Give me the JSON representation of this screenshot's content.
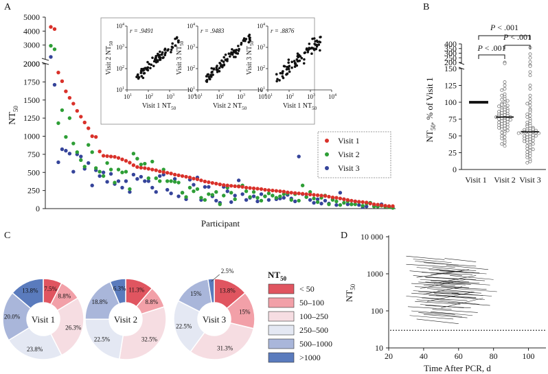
{
  "colors": {
    "visit1": "#d9312a",
    "visit2": "#2e9e36",
    "visit3": "#35449a",
    "pie": [
      "#e05560",
      "#f2a0a8",
      "#f6dde2",
      "#e4e8f3",
      "#a9b6da",
      "#5a7bbd"
    ]
  },
  "chart_data": [
    {
      "id": "A",
      "type": "scatter",
      "panel_label": "A",
      "xlabel": "Participant",
      "ylabel_main": "NT",
      "ylabel_sub": "50",
      "y_ticks_upper": [
        "5000",
        "4000",
        "3000",
        "2000"
      ],
      "y_ticks_lower": [
        "2000",
        "1750",
        "1500",
        "1250",
        "1000",
        "750",
        "500",
        "250",
        "0"
      ],
      "ylim": [
        0,
        5000
      ],
      "axis_break_at": 2000,
      "legend": [
        "Visit 1",
        "Visit 2",
        "Visit 3"
      ],
      "legend_position": "right",
      "series": [
        {
          "name": "Visit 1",
          "values": [
            4300,
            4150,
            1880,
            1760,
            1620,
            1530,
            1450,
            1350,
            1270,
            1190,
            1110,
            1000,
            990,
            790,
            730,
            725,
            720,
            715,
            700,
            680,
            660,
            635,
            600,
            575,
            565,
            560,
            550,
            540,
            530,
            515,
            505,
            495,
            485,
            470,
            460,
            450,
            440,
            430,
            415,
            405,
            390,
            375,
            365,
            355,
            345,
            335,
            325,
            320,
            315,
            310,
            305,
            300,
            290,
            285,
            280,
            275,
            270,
            260,
            255,
            250,
            245,
            240,
            235,
            225,
            220,
            215,
            210,
            205,
            200,
            195,
            190,
            185,
            180,
            175,
            165,
            155,
            150,
            140,
            130,
            120,
            110,
            100,
            95,
            90,
            85,
            70,
            60,
            55,
            45,
            40,
            35,
            35
          ]
        },
        {
          "name": "Visit 2",
          "values": [
            2950,
            2700,
            1180,
            1360,
            990,
            1250,
            900,
            780,
            670,
            580,
            880,
            780,
            560,
            510,
            450,
            630,
            540,
            360,
            540,
            500,
            510,
            270,
            760,
            690,
            610,
            620,
            420,
            650,
            420,
            380,
            540,
            380,
            380,
            370,
            360,
            220,
            160,
            290,
            240,
            270,
            150,
            120,
            200,
            190,
            230,
            60,
            180,
            290,
            220,
            130,
            310,
            320,
            240,
            160,
            230,
            150,
            110,
            170,
            210,
            180,
            150,
            170,
            200,
            210,
            120,
            200,
            110,
            320,
            160,
            230,
            140,
            90,
            150,
            180,
            60,
            120,
            100,
            50,
            80,
            100,
            60,
            60,
            90,
            40,
            70,
            80,
            30,
            30,
            40,
            25,
            20,
            10
          ]
        },
        {
          "name": "Visit 3",
          "values": [
            2150,
            1710,
            640,
            820,
            800,
            760,
            510,
            750,
            720,
            550,
            630,
            320,
            530,
            450,
            500,
            370,
            480,
            340,
            380,
            290,
            380,
            230,
            470,
            410,
            440,
            380,
            380,
            290,
            230,
            450,
            470,
            260,
            210,
            410,
            170,
            220,
            130,
            400,
            330,
            430,
            120,
            300,
            300,
            170,
            110,
            80,
            300,
            240,
            90,
            180,
            390,
            200,
            120,
            150,
            170,
            100,
            200,
            170,
            120,
            180,
            130,
            140,
            150,
            190,
            140,
            100,
            720,
            200,
            160,
            120,
            80,
            130,
            70,
            110,
            70,
            130,
            50,
            220,
            130,
            60,
            60,
            100,
            50,
            20,
            30,
            80,
            40,
            30,
            60,
            30,
            30,
            20
          ]
        }
      ]
    },
    {
      "id": "A-inset",
      "type": "scatter",
      "plots": [
        {
          "xlabel_main": "Visit 1 NT",
          "xlabel_sub": "50",
          "ylabel_main": "Visit 2 NT",
          "ylabel_sub": "50",
          "r_label": "r = .9491",
          "slope": 0.9,
          "spread": 0.16
        },
        {
          "xlabel_main": "Visit 2 NT",
          "xlabel_sub": "50",
          "ylabel_main": "Visit 3 NT",
          "ylabel_sub": "50",
          "r_label": "r = .9483",
          "slope": 0.95,
          "spread": 0.17
        },
        {
          "xlabel_main": "Visit 1 NT",
          "xlabel_sub": "50",
          "ylabel_main": "Visit 3 NT",
          "ylabel_sub": "50",
          "r_label": "r = .8876",
          "slope": 0.85,
          "spread": 0.26
        }
      ],
      "scale": "log10",
      "lim": [
        10,
        10000
      ],
      "tick_base": "10",
      "tick_exponents": [
        "1",
        "2",
        "3",
        "4"
      ]
    },
    {
      "id": "B",
      "type": "scatter",
      "panel_label": "B",
      "categories": [
        "Visit 1",
        "Visit 2",
        "Visit 3"
      ],
      "ylabel_main": "NT",
      "ylabel_sub": "50",
      "ylabel_rest": ", % of Visit 1",
      "y_ticks_upper": [
        "400",
        "350",
        "300",
        "250",
        "200"
      ],
      "y_ticks_lower": [
        "150",
        "125",
        "100",
        "75",
        "50",
        "25",
        "0"
      ],
      "axis_break_at": 150,
      "medians": [
        100,
        78,
        56
      ],
      "significance": [
        "P < .001",
        "P < .001",
        "P < .001"
      ],
      "series": [
        {
          "name": "Visit 1",
          "values": [
            100
          ]
        },
        {
          "name": "Visit 2",
          "values": [
            200,
            190,
            130,
            125,
            120,
            118,
            112,
            110,
            108,
            105,
            104,
            102,
            100,
            98,
            97,
            96,
            95,
            94,
            92,
            91,
            90,
            89,
            88,
            87,
            86,
            85,
            84,
            83,
            82,
            81,
            80,
            80,
            79,
            78,
            78,
            77,
            76,
            75,
            75,
            74,
            73,
            72,
            71,
            70,
            69,
            68,
            67,
            66,
            65,
            64,
            63,
            62,
            61,
            60,
            58,
            56,
            55,
            53,
            50,
            48,
            46,
            43,
            40,
            38,
            35
          ]
        },
        {
          "name": "Visit 3",
          "values": [
            360,
            290,
            250,
            205,
            170,
            160,
            145,
            140,
            125,
            120,
            110,
            105,
            100,
            98,
            95,
            90,
            88,
            85,
            82,
            80,
            78,
            75,
            72,
            70,
            68,
            66,
            65,
            64,
            62,
            61,
            60,
            60,
            59,
            58,
            57,
            57,
            56,
            56,
            55,
            55,
            54,
            54,
            53,
            52,
            51,
            50,
            50,
            49,
            48,
            47,
            46,
            45,
            44,
            43,
            42,
            41,
            40,
            38,
            36,
            35,
            33,
            31,
            30,
            28,
            26,
            24,
            22,
            20,
            18,
            15,
            12,
            10
          ]
        }
      ]
    },
    {
      "id": "C",
      "type": "pie",
      "panel_label": "C",
      "legend_title_main": "NT",
      "legend_title_sub": "50",
      "legend": [
        "< 50",
        "50–100",
        "100–250",
        "250–500",
        "500–1000",
        ">1000"
      ],
      "pies": [
        {
          "center_label": "Visit 1",
          "values": [
            7.5,
            8.8,
            26.3,
            23.8,
            20.0,
            13.8
          ],
          "labels": [
            "7.5%",
            "8.8%",
            "26.3%",
            "23.8%",
            "20.0%",
            "13.8%"
          ]
        },
        {
          "center_label": "Visit 2",
          "values": [
            11.3,
            8.8,
            32.5,
            22.5,
            18.8,
            6.3
          ],
          "labels": [
            "11.3%",
            "8.8%",
            "32.5%",
            "22.5%",
            "18.8%",
            "6.3%"
          ]
        },
        {
          "center_label": "Visit 3",
          "values": [
            13.8,
            15,
            31.3,
            22.5,
            15,
            2.5
          ],
          "labels": [
            "13.8%",
            "15%",
            "31.3%",
            "22.5%",
            "15%",
            "2.5%"
          ]
        }
      ]
    },
    {
      "id": "D",
      "type": "line",
      "panel_label": "D",
      "xlabel": "Time After PCR, d",
      "ylabel_main": "NT",
      "ylabel_sub": "50",
      "x_ticks": [
        "20",
        "40",
        "60",
        "80",
        "100"
      ],
      "xlim": [
        20,
        110
      ],
      "y_ticks": [
        "10 000",
        "1000",
        "100",
        "10"
      ],
      "ylim": [
        10,
        10000
      ],
      "scale_y": "log10",
      "threshold": 30,
      "lines": [
        [
          30,
          1800,
          58,
          1500
        ],
        [
          32,
          1200,
          62,
          900
        ],
        [
          34,
          900,
          60,
          700
        ],
        [
          36,
          1500,
          65,
          1100
        ],
        [
          38,
          700,
          66,
          600
        ],
        [
          40,
          2000,
          70,
          1600
        ],
        [
          35,
          450,
          60,
          400
        ],
        [
          33,
          300,
          58,
          250
        ],
        [
          37,
          600,
          64,
          500
        ],
        [
          39,
          1100,
          68,
          950
        ],
        [
          41,
          800,
          70,
          700
        ],
        [
          43,
          1300,
          72,
          1050
        ],
        [
          30,
          250,
          55,
          200
        ],
        [
          34,
          350,
          60,
          300
        ],
        [
          36,
          200,
          62,
          160
        ],
        [
          38,
          150,
          63,
          120
        ],
        [
          40,
          500,
          66,
          420
        ],
        [
          42,
          400,
          69,
          320
        ],
        [
          44,
          650,
          72,
          560
        ],
        [
          46,
          300,
          74,
          260
        ],
        [
          31,
          130,
          56,
          110
        ],
        [
          33,
          100,
          58,
          80
        ],
        [
          35,
          180,
          61,
          150
        ],
        [
          37,
          90,
          62,
          70
        ],
        [
          39,
          220,
          65,
          190
        ],
        [
          41,
          140,
          67,
          120
        ],
        [
          43,
          260,
          70,
          230
        ],
        [
          45,
          110,
          71,
          90
        ],
        [
          47,
          800,
          75,
          650
        ],
        [
          49,
          1200,
          76,
          1000
        ],
        [
          51,
          600,
          78,
          500
        ],
        [
          53,
          1700,
          77,
          1300
        ],
        [
          48,
          350,
          73,
          300
        ],
        [
          50,
          450,
          76,
          380
        ],
        [
          52,
          250,
          75,
          200
        ],
        [
          54,
          170,
          78,
          140
        ],
        [
          32,
          75,
          57,
          60
        ],
        [
          36,
          60,
          60,
          45
        ],
        [
          40,
          80,
          65,
          65
        ],
        [
          44,
          95,
          68,
          75
        ],
        [
          30,
          3000,
          52,
          2400
        ],
        [
          34,
          2500,
          56,
          2000
        ],
        [
          38,
          400,
          64,
          700
        ],
        [
          42,
          180,
          68,
          320
        ],
        [
          46,
          550,
          70,
          900
        ],
        [
          50,
          120,
          74,
          220
        ],
        [
          36,
          800,
          62,
          1200
        ],
        [
          40,
          280,
          62,
          450
        ],
        [
          44,
          950,
          66,
          1300
        ],
        [
          48,
          200,
          72,
          150
        ],
        [
          55,
          900,
          80,
          700
        ],
        [
          58,
          400,
          82,
          330
        ],
        [
          35,
          2200,
          60,
          1700
        ],
        [
          45,
          1500,
          70,
          1200
        ],
        [
          52,
          2600,
          70,
          2100
        ],
        [
          33,
          550,
          58,
          480
        ],
        [
          37,
          330,
          61,
          280
        ],
        [
          41,
          600,
          67,
          520
        ],
        [
          47,
          260,
          70,
          220
        ],
        [
          56,
          300,
          79,
          250
        ]
      ]
    }
  ]
}
